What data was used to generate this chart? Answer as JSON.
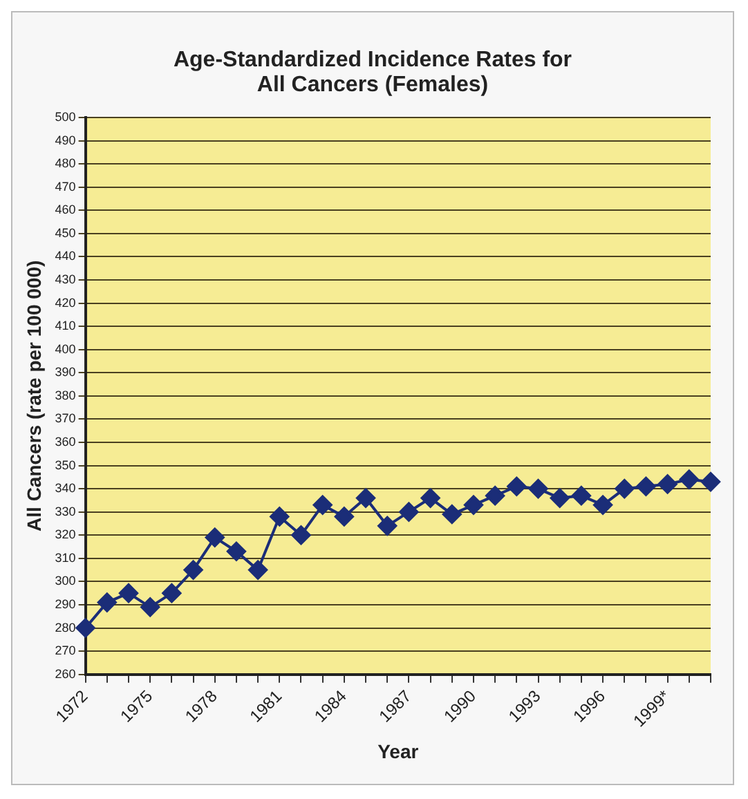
{
  "chart_data": {
    "type": "line",
    "title": "Age-Standardized Incidence Rates for All Cancers (Females)",
    "xlabel": "Year",
    "ylabel": "All Cancers (rate per 100 000)",
    "categories": [
      "1972",
      null,
      null,
      "1975",
      null,
      null,
      "1978",
      null,
      null,
      "1981",
      null,
      null,
      "1984",
      null,
      null,
      "1987",
      null,
      null,
      "1990",
      null,
      null,
      "1993",
      null,
      null,
      "1996",
      null,
      null,
      "1999*",
      null,
      null
    ],
    "series": [
      {
        "color": "#1b2d78",
        "values": [
          280,
          291,
          295,
          289,
          295,
          305,
          319,
          313,
          305,
          328,
          320,
          333,
          328,
          336,
          324,
          330,
          336,
          329,
          333,
          337,
          341,
          340,
          336,
          337,
          333,
          340,
          341,
          342,
          344,
          343
        ]
      }
    ],
    "ylim": [
      260,
      500
    ],
    "yticks": [
      260,
      270,
      280,
      290,
      300,
      310,
      320,
      330,
      340,
      350,
      360,
      370,
      380,
      390,
      400,
      410,
      420,
      430,
      440,
      450,
      460,
      470,
      480,
      490,
      500
    ],
    "grid": "y",
    "legend": false,
    "marker": "diamond",
    "line_style": "solid"
  }
}
